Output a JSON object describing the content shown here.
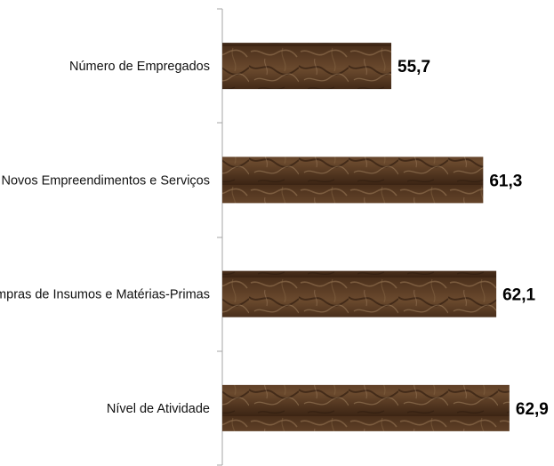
{
  "chart_data": {
    "type": "bar",
    "orientation": "horizontal",
    "categories": [
      "Número de Empregados",
      "Novos Empreendimentos e Serviços",
      "Compras de Insumos e Matérias-Primas",
      "Nível de Atividade"
    ],
    "values": [
      55.7,
      61.3,
      62.1,
      62.9
    ],
    "value_labels": [
      "55,7",
      "61,3",
      "62,1",
      "62,9"
    ],
    "title": "",
    "xlabel": "",
    "ylabel": "",
    "xlim": [
      45.4,
      63.7
    ],
    "grid": false,
    "legend": "none",
    "bar_fill": "textured brown",
    "colors": {
      "bar_dark": "#3b2414",
      "bar_mid": "#6b4a2e",
      "bar_light": "#9a7a58",
      "axis": "#a6a6a6",
      "text": "#000000"
    }
  }
}
